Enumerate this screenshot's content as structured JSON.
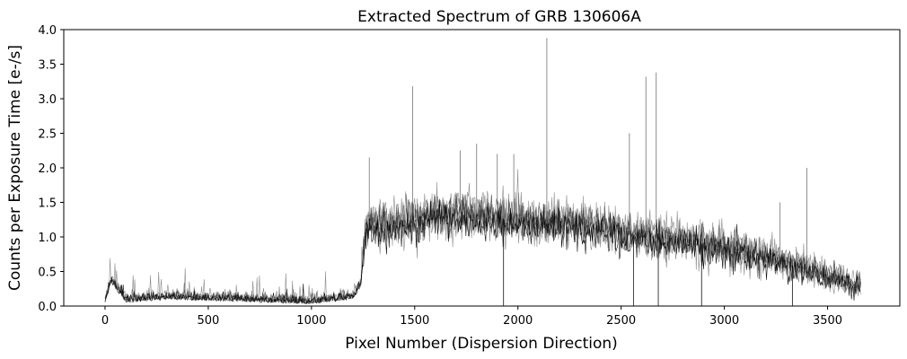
{
  "chart_data": {
    "type": "line",
    "title": "Extracted Spectrum of GRB 130606A",
    "xlabel": "Pixel Number (Dispersion Direction)",
    "ylabel": "Counts per Exposure Time [e-/s]",
    "xlim": [
      -200,
      3850
    ],
    "ylim": [
      0.0,
      4.0
    ],
    "xticks": [
      0,
      500,
      1000,
      1500,
      2000,
      2500,
      3000,
      3500
    ],
    "yticks": [
      0.0,
      0.5,
      1.0,
      1.5,
      2.0,
      2.5,
      3.0,
      3.5,
      4.0
    ],
    "ytick_labels": [
      "0.0",
      "0.5",
      "1.0",
      "1.5",
      "2.0",
      "2.5",
      "3.0",
      "3.5",
      "4.0"
    ],
    "grid": false,
    "line_color": "#000000",
    "x_range": [
      0,
      3660
    ],
    "profile": {
      "x": [
        0,
        30,
        100,
        300,
        500,
        800,
        1000,
        1200,
        1240,
        1260,
        1300,
        1500,
        1700,
        1800,
        2000,
        2200,
        2400,
        2500,
        2600,
        2800,
        3000,
        3200,
        3400,
        3500,
        3660
      ],
      "y": [
        0.05,
        0.35,
        0.05,
        0.1,
        0.08,
        0.05,
        0.03,
        0.1,
        0.3,
        1.1,
        1.15,
        1.25,
        1.35,
        1.3,
        1.25,
        1.2,
        1.15,
        1.05,
        1.0,
        0.95,
        0.85,
        0.7,
        0.55,
        0.4,
        0.3
      ]
    },
    "spikes": [
      {
        "x": 1280,
        "y": 2.15
      },
      {
        "x": 1490,
        "y": 3.18
      },
      {
        "x": 1720,
        "y": 2.25
      },
      {
        "x": 1800,
        "y": 2.35
      },
      {
        "x": 1900,
        "y": 2.2
      },
      {
        "x": 1980,
        "y": 2.2
      },
      {
        "x": 2140,
        "y": 3.88
      },
      {
        "x": 2540,
        "y": 2.5
      },
      {
        "x": 2620,
        "y": 3.32
      },
      {
        "x": 2670,
        "y": 3.38
      },
      {
        "x": 3270,
        "y": 1.5
      },
      {
        "x": 3400,
        "y": 2.0
      }
    ],
    "dips": [
      {
        "x": 1930,
        "y": 0.0
      },
      {
        "x": 2560,
        "y": 0.0
      },
      {
        "x": 2680,
        "y": 0.0
      },
      {
        "x": 2890,
        "y": 0.0
      },
      {
        "x": 3330,
        "y": 0.0
      }
    ]
  }
}
